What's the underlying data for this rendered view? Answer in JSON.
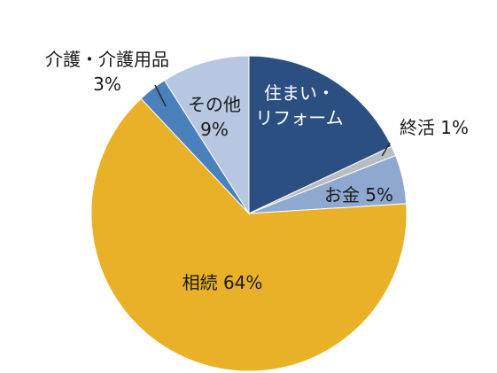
{
  "chart_data": {
    "type": "pie",
    "start_angle_deg": 0,
    "direction": "clockwise",
    "slices": [
      {
        "id": "sumai",
        "label_lines": [
          "住まい・",
          "リフォーム"
        ],
        "value": 18,
        "color": "#2c4f82",
        "label_color": "#ffffff"
      },
      {
        "id": "shukatsu",
        "label_lines": [
          "終活 1%"
        ],
        "value": 1,
        "color": "#b8bcc3",
        "label_color": "#1a1a1a"
      },
      {
        "id": "okane",
        "label_lines": [
          "お金 5%"
        ],
        "value": 5,
        "color": "#8fa8d0",
        "label_color": "#1a1a1a"
      },
      {
        "id": "souzoku",
        "label_lines": [
          "相続 64%"
        ],
        "value": 64,
        "color": "#e8b127",
        "label_color": "#1a1a1a"
      },
      {
        "id": "kaigo",
        "label_lines": [
          "介護・介護用品",
          "3%"
        ],
        "value": 3,
        "color": "#4a80bb",
        "label_color": "#1a1a1a"
      },
      {
        "id": "sonota",
        "label_lines": [
          "その他",
          "9%"
        ],
        "value": 9,
        "color": "#b7c7e1",
        "label_color": "#1a1a1a"
      }
    ]
  }
}
